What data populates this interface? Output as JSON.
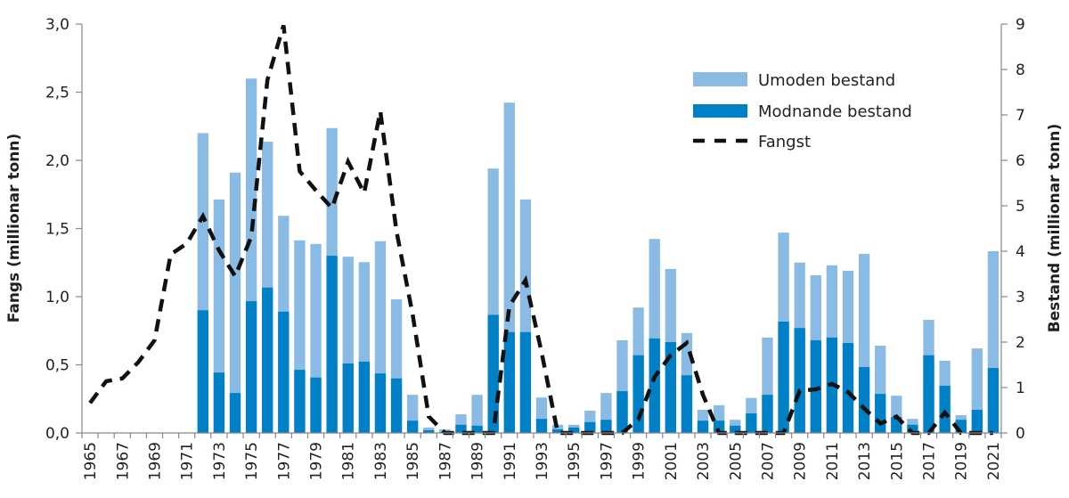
{
  "chart_data": {
    "type": "bar",
    "subtype": "stacked-bar-with-line",
    "title": "",
    "xlabel": "",
    "ylabel_left": "Fangs (millionar tonn)",
    "ylabel_right": "Bestand (millionar tonn)",
    "ylim_left": [
      0,
      3.0
    ],
    "ylim_right": [
      0,
      9
    ],
    "yticks_left": [
      "0,0",
      "0,5",
      "1,0",
      "1,5",
      "2,0",
      "2,5",
      "3,0"
    ],
    "yticks_right": [
      "0",
      "1",
      "2",
      "3",
      "4",
      "5",
      "6",
      "7",
      "8",
      "9"
    ],
    "grid": false,
    "legend_position": "top-right",
    "x": [
      1965,
      1966,
      1967,
      1968,
      1969,
      1970,
      1971,
      1972,
      1973,
      1974,
      1975,
      1976,
      1977,
      1978,
      1979,
      1980,
      1981,
      1982,
      1983,
      1984,
      1985,
      1986,
      1987,
      1988,
      1989,
      1990,
      1991,
      1992,
      1993,
      1994,
      1995,
      1996,
      1997,
      1998,
      1999,
      2000,
      2001,
      2002,
      2003,
      2004,
      2005,
      2006,
      2007,
      2008,
      2009,
      2010,
      2011,
      2012,
      2013,
      2014,
      2015,
      2016,
      2017,
      2018,
      2019,
      2020,
      2021
    ],
    "xtick_labels": [
      "1965",
      "1967",
      "1969",
      "1971",
      "1973",
      "1975",
      "1977",
      "1979",
      "1981",
      "1983",
      "1985",
      "1987",
      "1989",
      "1991",
      "1993",
      "1995",
      "1997",
      "1999",
      "2001",
      "2003",
      "2005",
      "2007",
      "2009",
      "2011",
      "2013",
      "2015",
      "2017",
      "2019",
      "2021"
    ],
    "series": [
      {
        "name": "Modnande bestand",
        "type": "bar",
        "axis": "right",
        "color": "#0080c6",
        "values": [
          null,
          null,
          null,
          null,
          null,
          null,
          null,
          2.7,
          1.33,
          0.88,
          2.9,
          3.2,
          2.67,
          1.39,
          1.22,
          3.9,
          1.53,
          1.57,
          1.31,
          1.2,
          0.27,
          0.06,
          0.02,
          0.18,
          0.16,
          2.6,
          2.22,
          2.22,
          0.31,
          0.08,
          0.12,
          0.24,
          0.29,
          0.92,
          1.71,
          2.08,
          2.0,
          1.27,
          0.27,
          0.27,
          0.16,
          0.43,
          0.84,
          2.45,
          2.31,
          2.04,
          2.1,
          1.98,
          1.45,
          0.86,
          0.35,
          0.18,
          1.71,
          1.04,
          0.29,
          0.51,
          1.43
        ]
      },
      {
        "name": "Umoden bestand",
        "type": "bar",
        "axis": "right",
        "color": "#8abbe4",
        "stack_total": [
          null,
          null,
          null,
          null,
          null,
          null,
          null,
          6.6,
          5.14,
          5.73,
          7.8,
          6.41,
          4.78,
          4.24,
          4.16,
          6.71,
          3.88,
          3.76,
          4.22,
          2.94,
          0.84,
          0.12,
          0.08,
          0.41,
          0.84,
          5.82,
          7.27,
          5.14,
          0.78,
          0.18,
          0.18,
          0.49,
          0.88,
          2.04,
          2.76,
          4.27,
          3.61,
          2.2,
          0.51,
          0.61,
          0.29,
          0.77,
          2.1,
          4.41,
          3.75,
          3.47,
          3.69,
          3.57,
          3.94,
          1.92,
          0.82,
          0.31,
          2.49,
          1.59,
          0.39,
          1.86,
          4.0
        ],
        "values": [
          null,
          null,
          null,
          null,
          null,
          null,
          null,
          3.9,
          3.81,
          4.85,
          4.9,
          3.21,
          2.11,
          2.85,
          2.94,
          2.81,
          2.35,
          2.19,
          2.91,
          1.74,
          0.57,
          0.06,
          0.06,
          0.23,
          0.68,
          3.22,
          5.05,
          2.92,
          0.47,
          0.1,
          0.06,
          0.25,
          0.59,
          1.12,
          1.05,
          2.19,
          1.61,
          0.93,
          0.24,
          0.34,
          0.13,
          0.34,
          1.26,
          1.96,
          1.44,
          1.43,
          1.59,
          1.59,
          2.49,
          1.06,
          0.47,
          0.13,
          0.78,
          0.55,
          0.1,
          1.35,
          2.57
        ]
      },
      {
        "name": "Fangst",
        "type": "line",
        "axis": "left",
        "style": "dashed",
        "color": "#000000",
        "values": [
          0.22,
          0.38,
          0.4,
          0.52,
          0.68,
          1.31,
          1.39,
          1.59,
          1.34,
          1.15,
          1.44,
          2.59,
          2.99,
          1.92,
          1.78,
          1.65,
          1.99,
          1.76,
          2.36,
          1.48,
          0.87,
          0.12,
          0.0,
          0.0,
          0.0,
          0.0,
          0.93,
          1.12,
          0.59,
          0.0,
          0.0,
          0.0,
          0.0,
          0.0,
          0.1,
          0.41,
          0.57,
          0.66,
          0.28,
          0.0,
          0.0,
          0.0,
          0.0,
          0.0,
          0.31,
          0.32,
          0.36,
          0.3,
          0.18,
          0.07,
          0.12,
          0.0,
          0.0,
          0.15,
          0.0,
          0.0,
          0.0
        ]
      }
    ]
  },
  "legend": {
    "items": [
      {
        "label": "Umoden bestand",
        "color": "#8abbe4",
        "kind": "bar"
      },
      {
        "label": "Modnande bestand",
        "color": "#0080c6",
        "kind": "bar"
      },
      {
        "label": "Fangst",
        "color": "#000000",
        "kind": "dashed-line"
      }
    ]
  }
}
